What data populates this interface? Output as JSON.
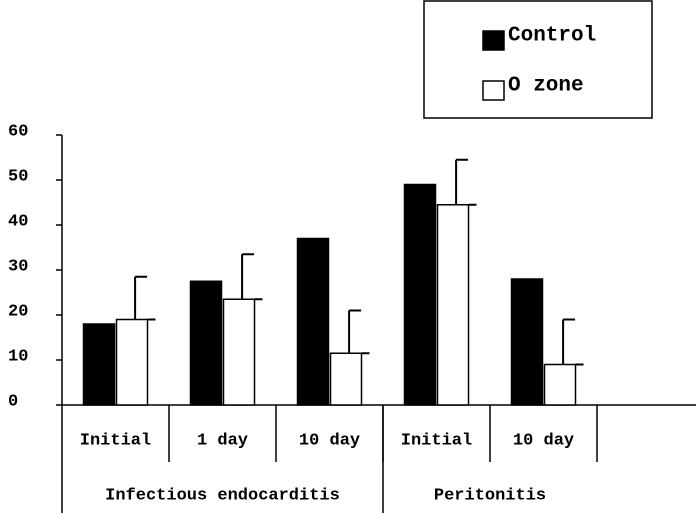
{
  "chart_data": {
    "type": "bar",
    "categories": [
      "Initial",
      "1 day",
      "10 day",
      "Initial",
      "10 day"
    ],
    "groups": [
      {
        "label": "Infectious endocarditis",
        "start": 0,
        "end": 2
      },
      {
        "label": "Peritonitis",
        "start": 3,
        "end": 4
      }
    ],
    "series": [
      {
        "name": "Control",
        "color": "#000000",
        "values": [
          18,
          27.5,
          37,
          49,
          28
        ]
      },
      {
        "name": "O zone",
        "color": "#ffffff",
        "values": [
          19,
          23.5,
          11.5,
          44.5,
          9
        ],
        "errors": [
          9.5,
          10,
          9.5,
          10,
          10
        ]
      }
    ],
    "ylim": [
      0,
      60
    ],
    "yticks": [
      0,
      10,
      20,
      30,
      40,
      50,
      60
    ],
    "legend": "top-right"
  }
}
